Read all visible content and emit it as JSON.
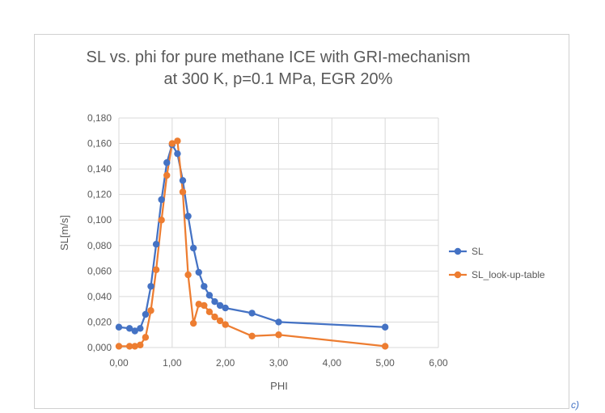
{
  "chart_data": {
    "type": "line",
    "title_lines": [
      "SL vs. phi for pure methane ICE with GRI-mechanism",
      "at 300 K, p=0.1 MPa, EGR 20%"
    ],
    "xlabel": "PHI",
    "ylabel": "SL[m/s]",
    "xlim": [
      0,
      6
    ],
    "ylim": [
      0,
      0.18
    ],
    "x_ticks": [
      "0,00",
      "1,00",
      "2,00",
      "3,00",
      "4,00",
      "5,00",
      "6,00"
    ],
    "x_tick_values": [
      0,
      1,
      2,
      3,
      4,
      5,
      6
    ],
    "y_ticks": [
      "0,000",
      "0,020",
      "0,040",
      "0,060",
      "0,080",
      "0,100",
      "0,120",
      "0,140",
      "0,160",
      "0,180"
    ],
    "y_tick_values": [
      0,
      0.02,
      0.04,
      0.06,
      0.08,
      0.1,
      0.12,
      0.14,
      0.16,
      0.18
    ],
    "grid": true,
    "legend_position": "right",
    "series": [
      {
        "name": "SL",
        "color": "#4472c4",
        "points": [
          [
            0.0,
            0.016
          ],
          [
            0.2,
            0.015
          ],
          [
            0.3,
            0.013
          ],
          [
            0.4,
            0.015
          ],
          [
            0.5,
            0.026
          ],
          [
            0.6,
            0.048
          ],
          [
            0.7,
            0.081
          ],
          [
            0.8,
            0.116
          ],
          [
            0.9,
            0.145
          ],
          [
            1.0,
            0.159
          ],
          [
            1.1,
            0.152
          ],
          [
            1.2,
            0.131
          ],
          [
            1.3,
            0.103
          ],
          [
            1.4,
            0.078
          ],
          [
            1.5,
            0.059
          ],
          [
            1.6,
            0.048
          ],
          [
            1.7,
            0.041
          ],
          [
            1.8,
            0.036
          ],
          [
            1.9,
            0.033
          ],
          [
            2.0,
            0.031
          ],
          [
            2.5,
            0.027
          ],
          [
            3.0,
            0.02
          ],
          [
            5.0,
            0.016
          ]
        ]
      },
      {
        "name": "SL_look-up-table",
        "color": "#ed7d31",
        "points": [
          [
            0.0,
            0.001
          ],
          [
            0.2,
            0.001
          ],
          [
            0.3,
            0.001
          ],
          [
            0.4,
            0.002
          ],
          [
            0.5,
            0.008
          ],
          [
            0.6,
            0.029
          ],
          [
            0.7,
            0.061
          ],
          [
            0.8,
            0.1
          ],
          [
            0.9,
            0.135
          ],
          [
            1.0,
            0.16
          ],
          [
            1.1,
            0.162
          ],
          [
            1.2,
            0.122
          ],
          [
            1.3,
            0.057
          ],
          [
            1.4,
            0.019
          ],
          [
            1.5,
            0.034
          ],
          [
            1.6,
            0.033
          ],
          [
            1.7,
            0.028
          ],
          [
            1.8,
            0.024
          ],
          [
            1.9,
            0.021
          ],
          [
            2.0,
            0.018
          ],
          [
            2.5,
            0.009
          ],
          [
            3.0,
            0.01
          ],
          [
            5.0,
            0.001
          ]
        ]
      }
    ]
  },
  "caption": "c)"
}
